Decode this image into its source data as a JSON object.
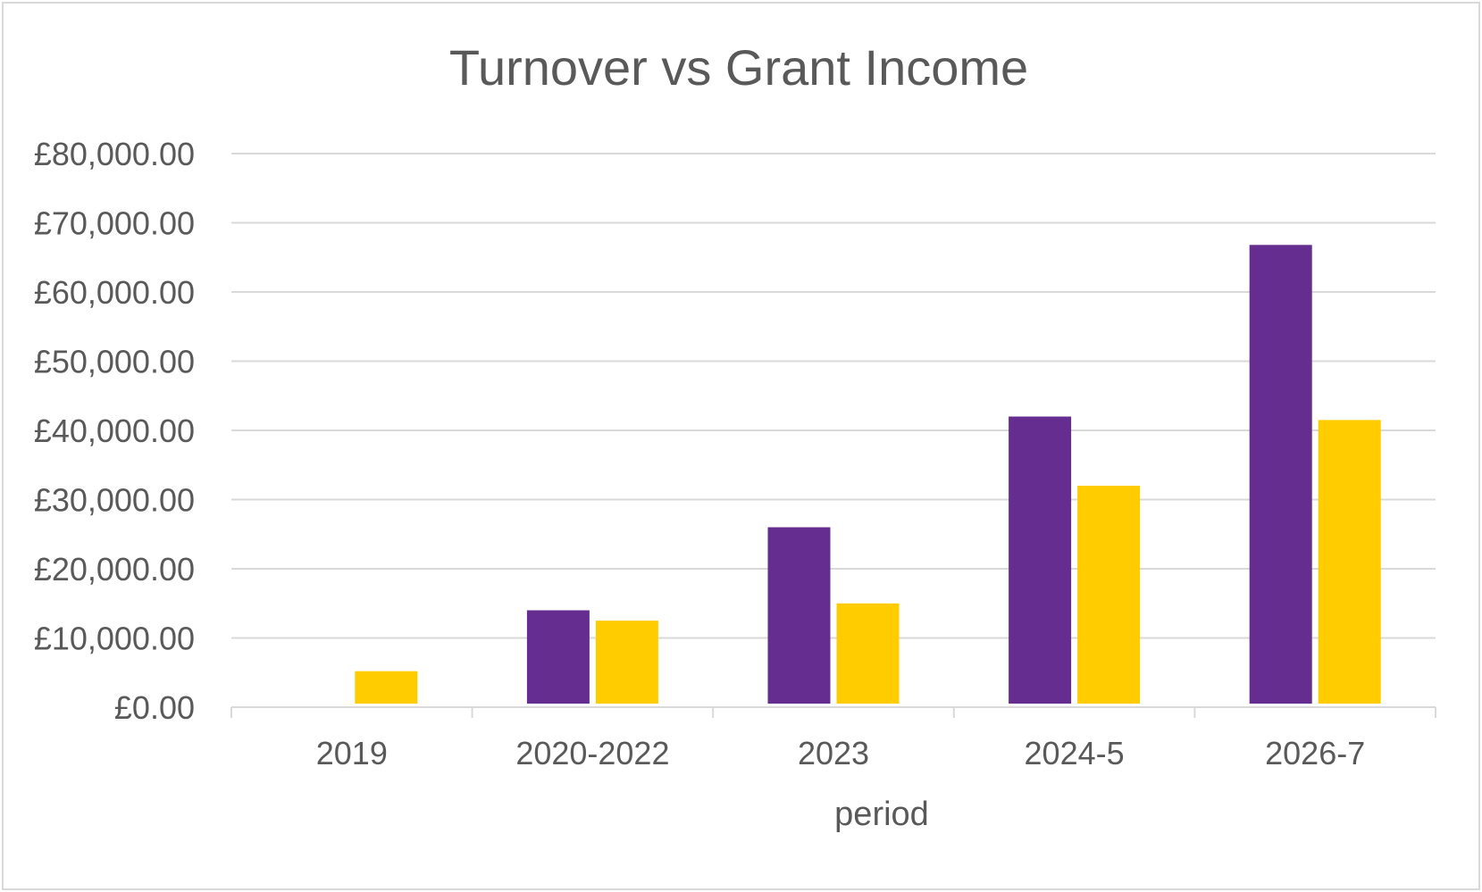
{
  "chart_data": {
    "type": "bar",
    "title": "Turnover vs Grant Income",
    "xlabel": "period",
    "ylabel": "",
    "categories": [
      "2019",
      "2020-2022",
      "2023",
      "2024-5",
      "2026-7"
    ],
    "series": [
      {
        "values": [
          0,
          14000,
          26000,
          42000,
          66800
        ],
        "color": "#662d91"
      },
      {
        "values": [
          5200,
          12500,
          15000,
          32000,
          41500
        ],
        "color": "#ffcc00"
      }
    ],
    "ylim": [
      0,
      80000
    ],
    "yticks": [
      0,
      10000,
      20000,
      30000,
      40000,
      50000,
      60000,
      70000,
      80000
    ],
    "ytick_labels": [
      "£0.00",
      "£10,000.00",
      "£20,000.00",
      "£30,000.00",
      "£40,000.00",
      "£50,000.00",
      "£60,000.00",
      "£70,000.00",
      "£80,000.00"
    ],
    "grid": true,
    "legend": "none"
  }
}
